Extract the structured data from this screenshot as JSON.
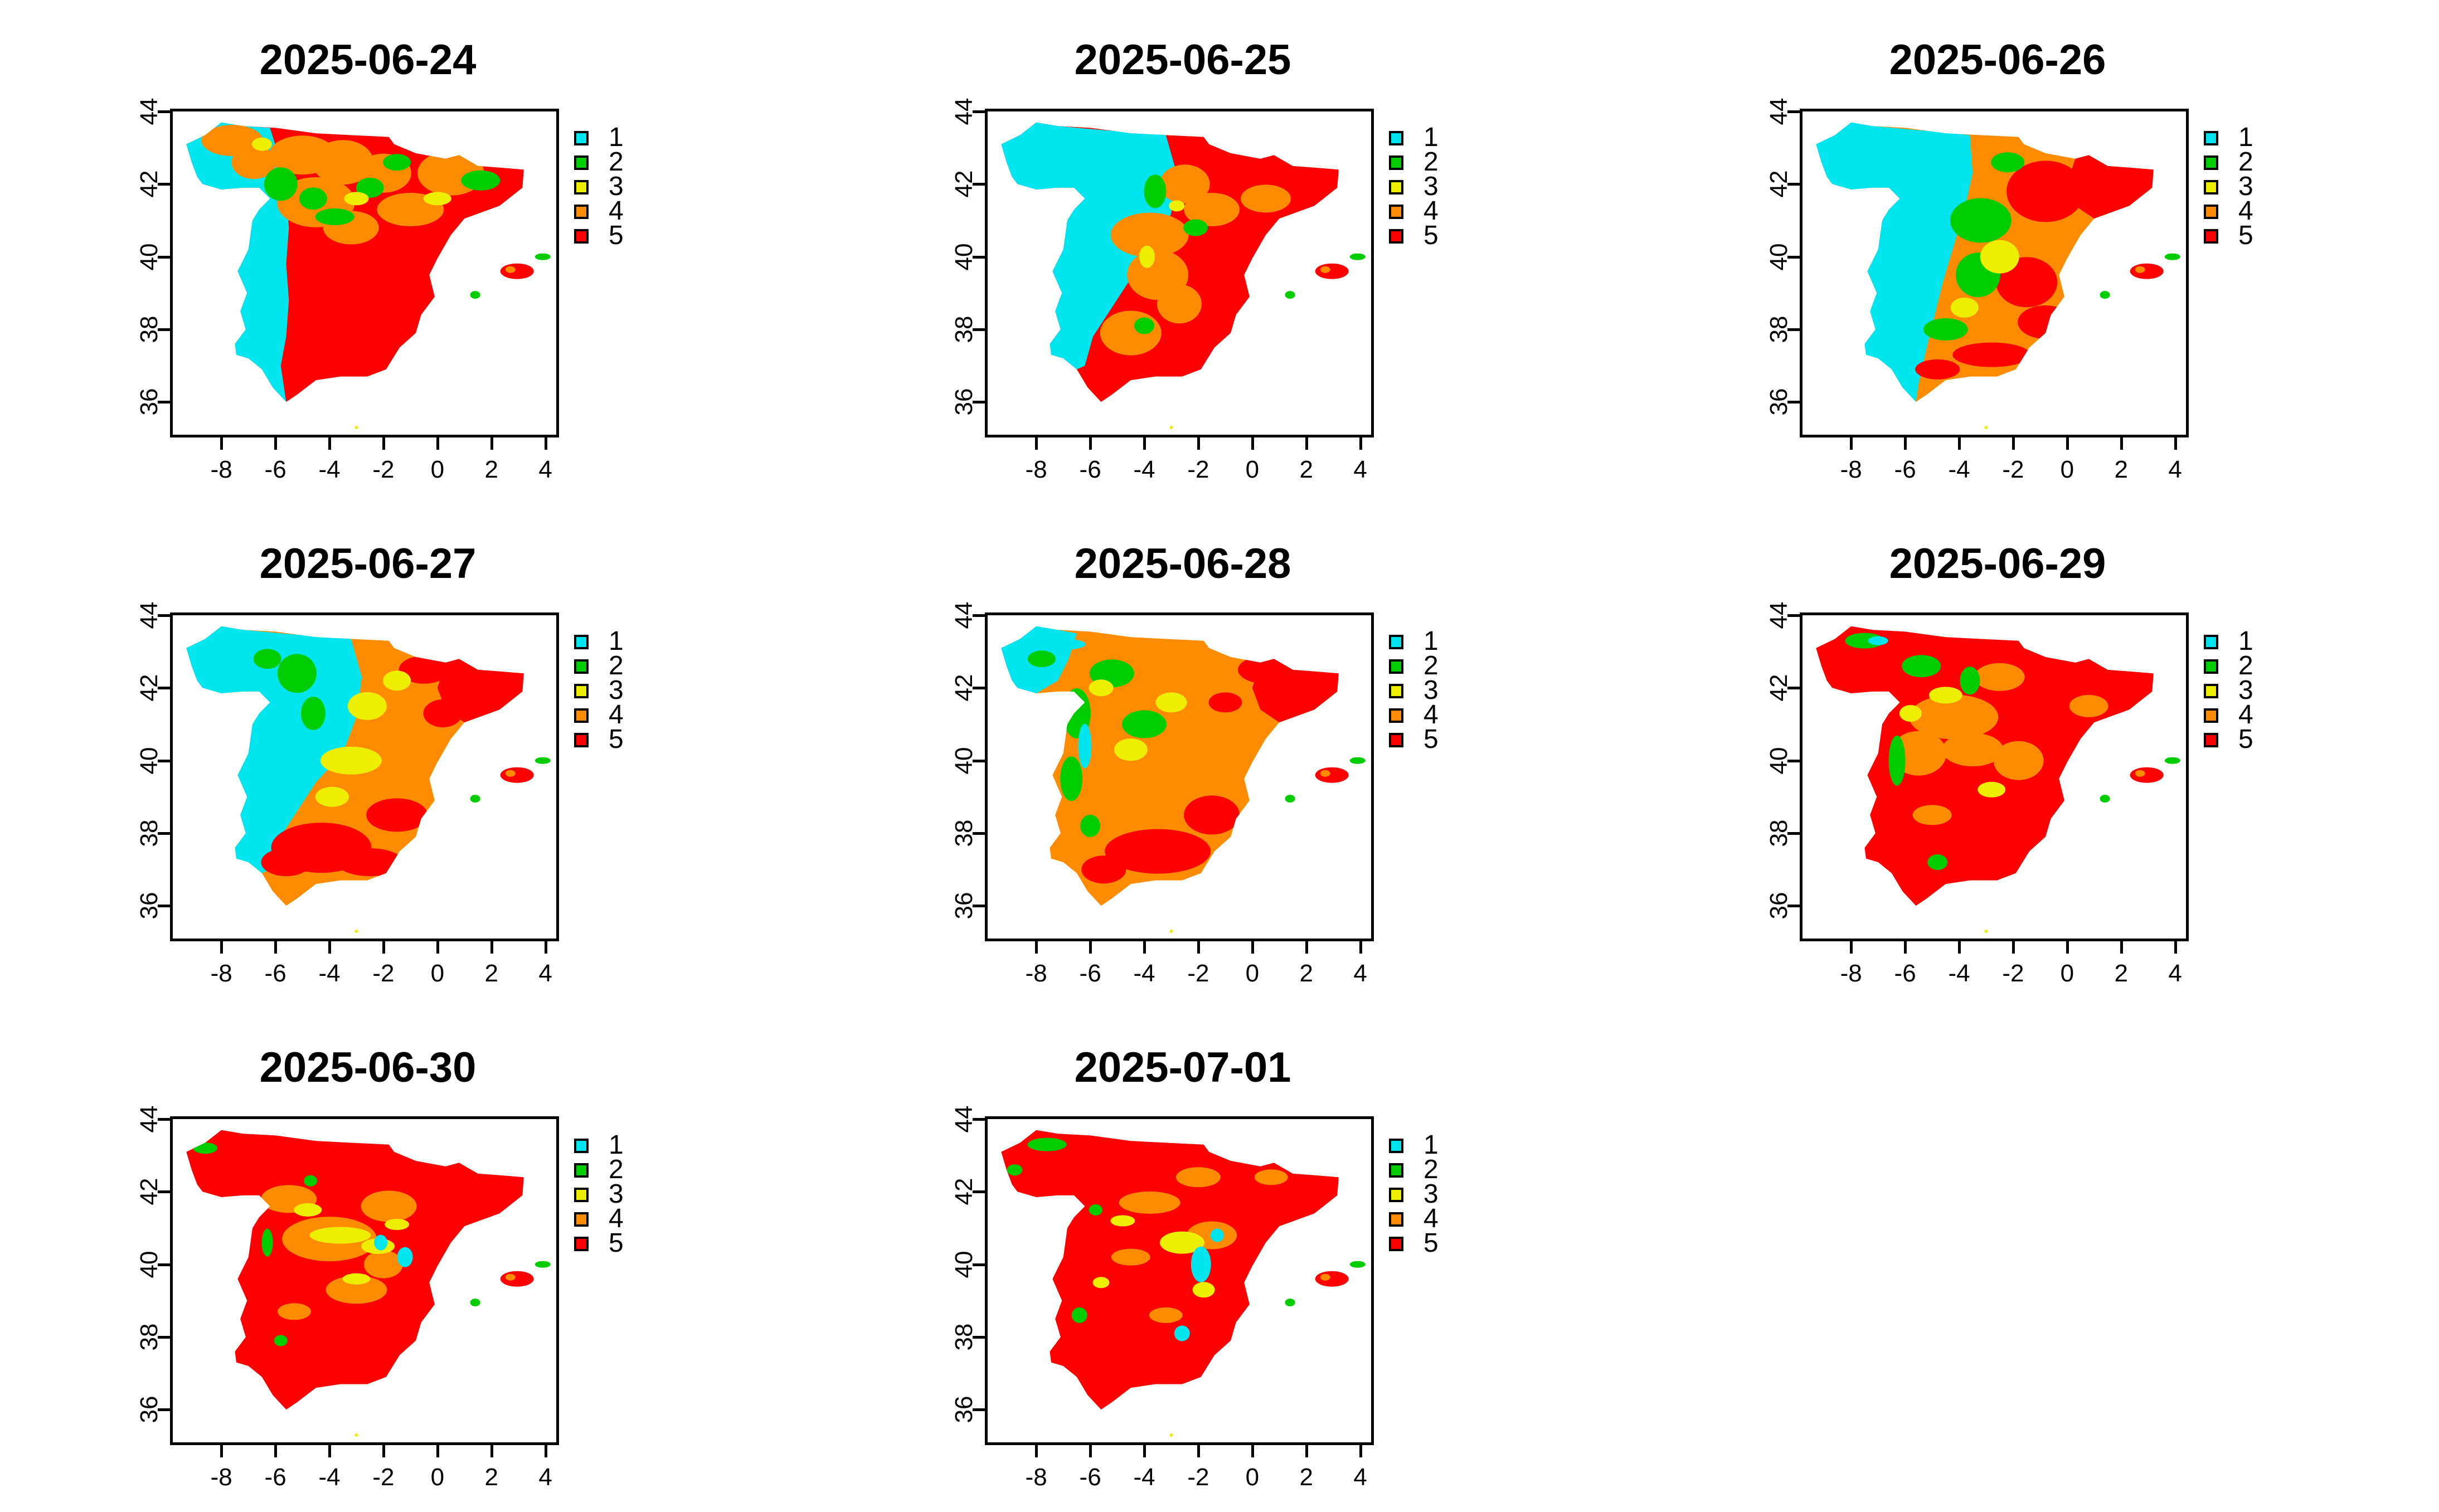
{
  "figure": {
    "legend_colors": {
      "1": "#00E5EE",
      "2": "#00CD00",
      "3": "#EEEE00",
      "4": "#FF8C00",
      "5": "#FF0000"
    },
    "legend_labels": [
      "1",
      "2",
      "3",
      "4",
      "5"
    ],
    "x_ticks": [
      "-8",
      "-6",
      "-4",
      "-2",
      "0",
      "2",
      "4"
    ],
    "y_ticks": [
      "36",
      "38",
      "40",
      "42",
      "44"
    ],
    "x_range": [
      -9.8,
      4.4
    ],
    "y_range": [
      35.1,
      44.0
    ],
    "panels": [
      {
        "title": "2025-06-24",
        "dominant_classes": [
          "1",
          "5",
          "4"
        ]
      },
      {
        "title": "2025-06-25",
        "dominant_classes": [
          "1",
          "5",
          "4"
        ]
      },
      {
        "title": "2025-06-26",
        "dominant_classes": [
          "1",
          "5",
          "4",
          "3"
        ]
      },
      {
        "title": "2025-06-27",
        "dominant_classes": [
          "1",
          "4",
          "5",
          "3"
        ]
      },
      {
        "title": "2025-06-28",
        "dominant_classes": [
          "4",
          "5",
          "2",
          "1"
        ]
      },
      {
        "title": "2025-06-29",
        "dominant_classes": [
          "5",
          "4",
          "2",
          "3"
        ]
      },
      {
        "title": "2025-06-30",
        "dominant_classes": [
          "5",
          "4",
          "3",
          "2"
        ]
      },
      {
        "title": "2025-07-01",
        "dominant_classes": [
          "5",
          "4",
          "1",
          "3"
        ]
      }
    ]
  }
}
